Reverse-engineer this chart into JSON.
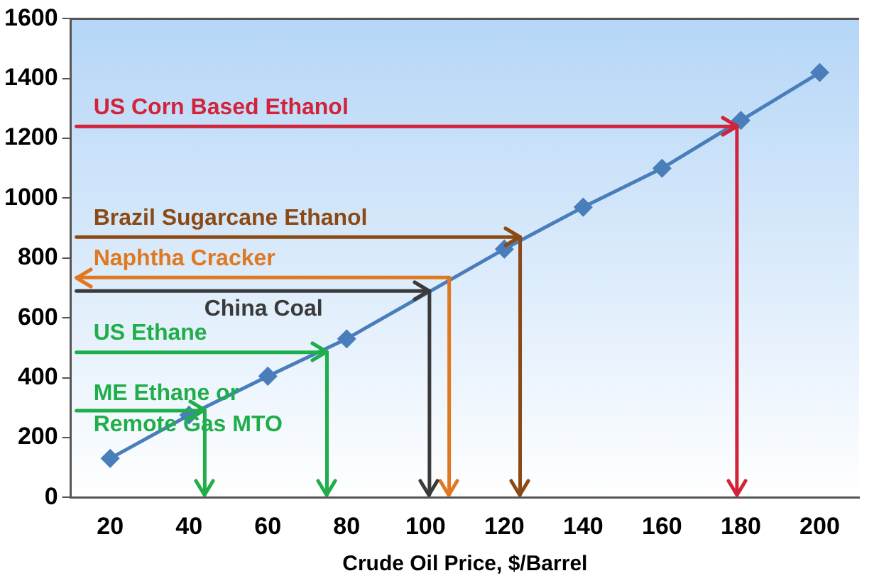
{
  "chart_data": {
    "type": "line",
    "xlabel": "Crude Oil Price, $/Barrel",
    "x": [
      20,
      40,
      60,
      80,
      100,
      120,
      140,
      160,
      180,
      200
    ],
    "series": [
      {
        "color": "#4a7ebb",
        "values": [
          130,
          275,
          405,
          530,
          null,
          830,
          970,
          1100,
          1260,
          1420
        ]
      }
    ],
    "xlim": [
      10,
      210
    ],
    "xticks": [
      20,
      40,
      60,
      80,
      100,
      120,
      140,
      160,
      180,
      200
    ],
    "ylim": [
      0,
      1600
    ],
    "yticks": [
      0,
      200,
      400,
      600,
      800,
      1000,
      1200,
      1400,
      1600
    ],
    "grid": false,
    "legend": false,
    "marker": "diamond",
    "line_style": "solid",
    "ref_lines": [
      {
        "axis": "y",
        "value": 1240,
        "label": "US Corn Based Ethanol",
        "color": "#d2233a"
      },
      {
        "axis": "x",
        "value": 179,
        "color": "#d2233a"
      },
      {
        "axis": "y",
        "value": 870,
        "label": "Brazil Sugarcane Ethanol",
        "color": "#8b4a14"
      },
      {
        "axis": "x",
        "value": 124,
        "color": "#8b4a14"
      },
      {
        "axis": "y",
        "value": 735,
        "label": "Naphtha Cracker",
        "color": "#e07820"
      },
      {
        "axis": "x",
        "value": 106,
        "color": "#e07820"
      },
      {
        "axis": "y",
        "value": 690,
        "label": "China Coal",
        "color": "#3a3a3a"
      },
      {
        "axis": "x",
        "value": 101,
        "color": "#3a3a3a"
      },
      {
        "axis": "y",
        "value": 485,
        "label": "US Ethane",
        "color": "#1fae4a"
      },
      {
        "axis": "x",
        "value": 75,
        "color": "#1fae4a"
      },
      {
        "axis": "y",
        "value": 290,
        "label": "ME Ethane or Remote Gas MTO",
        "color": "#1fae4a"
      },
      {
        "axis": "x",
        "value": 44,
        "color": "#1fae4a"
      }
    ]
  }
}
